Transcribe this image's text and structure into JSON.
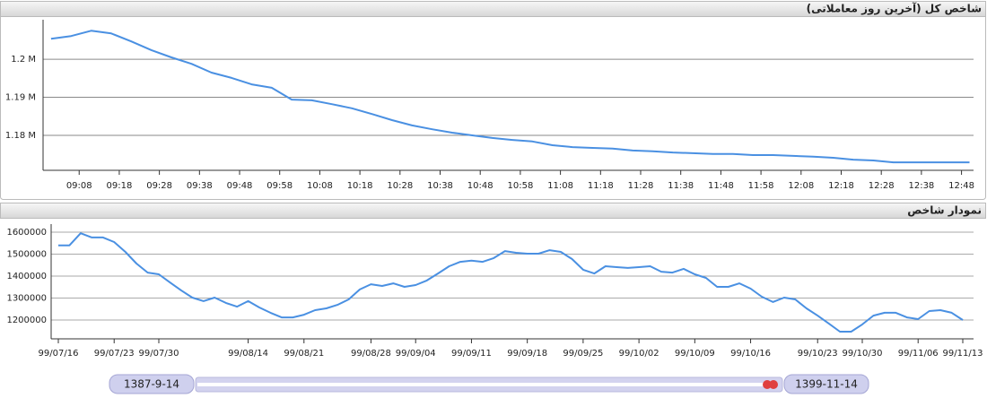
{
  "chart_data": [
    {
      "type": "line",
      "title": "شاخص کل (آخرین روز معاملاتی)",
      "x": [
        "09:01",
        "09:06",
        "09:11",
        "09:16",
        "09:21",
        "09:26",
        "09:31",
        "09:36",
        "09:41",
        "09:46",
        "09:51",
        "09:56",
        "10:01",
        "10:06",
        "10:11",
        "10:16",
        "10:21",
        "10:26",
        "10:31",
        "10:36",
        "10:41",
        "10:46",
        "10:51",
        "10:56",
        "11:01",
        "11:06",
        "11:11",
        "11:16",
        "11:21",
        "11:26",
        "11:31",
        "11:36",
        "11:41",
        "11:46",
        "11:51",
        "11:56",
        "12:01",
        "12:06",
        "12:11",
        "12:16",
        "12:21",
        "12:26",
        "12:31",
        "12:36",
        "12:41",
        "12:46",
        "12:50"
      ],
      "values": [
        1205400,
        1206100,
        1207500,
        1206800,
        1204700,
        1202400,
        1200500,
        1198800,
        1196500,
        1195100,
        1193400,
        1192500,
        1189400,
        1189200,
        1188200,
        1187100,
        1185600,
        1184000,
        1182600,
        1181600,
        1180700,
        1180000,
        1179300,
        1178800,
        1178400,
        1177400,
        1176900,
        1176700,
        1176500,
        1176000,
        1175800,
        1175500,
        1175300,
        1175100,
        1175100,
        1174800,
        1174800,
        1174600,
        1174400,
        1174100,
        1173600,
        1173400,
        1172900,
        1172900,
        1172900,
        1172900,
        1172900
      ],
      "color": "#4a90e2",
      "xlim": [
        "08:59",
        "12:51"
      ],
      "xticks": [
        "09:08",
        "09:18",
        "09:28",
        "09:38",
        "09:48",
        "09:58",
        "10:08",
        "10:18",
        "10:28",
        "10:38",
        "10:48",
        "10:58",
        "11:08",
        "11:18",
        "11:28",
        "11:38",
        "11:48",
        "11:58",
        "12:08",
        "12:18",
        "12:28",
        "12:38",
        "12:48"
      ],
      "ylim": [
        1170800,
        1210400
      ],
      "yticks": [
        {
          "value": 1180000,
          "label": "1.18 M"
        },
        {
          "value": 1190000,
          "label": "1.19 M"
        },
        {
          "value": 1200000,
          "label": "1.2 M"
        }
      ],
      "grid": true
    },
    {
      "type": "line",
      "title": "نمودار شاخص",
      "categories": [
        "99/07/16",
        null,
        null,
        null,
        null,
        "99/07/23",
        null,
        null,
        null,
        "99/07/30",
        null,
        null,
        null,
        null,
        null,
        null,
        null,
        "99/08/14",
        null,
        null,
        null,
        null,
        "99/08/21",
        null,
        null,
        null,
        null,
        null,
        "99/08/28",
        null,
        null,
        null,
        "99/09/04",
        null,
        null,
        null,
        null,
        "99/09/11",
        null,
        null,
        null,
        null,
        "99/09/18",
        null,
        null,
        null,
        null,
        "99/09/25",
        null,
        null,
        null,
        null,
        "99/10/02",
        null,
        null,
        null,
        null,
        "99/10/09",
        null,
        null,
        null,
        null,
        "99/10/16",
        null,
        null,
        null,
        null,
        null,
        "99/10/23",
        null,
        null,
        null,
        "99/10/30",
        null,
        null,
        null,
        null,
        "99/11/06",
        null,
        null,
        null,
        "99/11/13"
      ],
      "values": [
        1540000,
        1540000,
        1595000,
        1576000,
        1576000,
        1555000,
        1510000,
        1457000,
        1416000,
        1408000,
        1371000,
        1335000,
        1302000,
        1286000,
        1302000,
        1278000,
        1261000,
        1286000,
        1257000,
        1233000,
        1212000,
        1212000,
        1224000,
        1245000,
        1253000,
        1269000,
        1294000,
        1339000,
        1363000,
        1355000,
        1367000,
        1351000,
        1359000,
        1380000,
        1412000,
        1445000,
        1465000,
        1470000,
        1465000,
        1482000,
        1514000,
        1506000,
        1502000,
        1502000,
        1518000,
        1510000,
        1478000,
        1429000,
        1412000,
        1445000,
        1441000,
        1437000,
        1441000,
        1445000,
        1420000,
        1416000,
        1433000,
        1408000,
        1392000,
        1351000,
        1351000,
        1367000,
        1343000,
        1306000,
        1282000,
        1302000,
        1294000,
        1253000,
        1220000,
        1184000,
        1147000,
        1147000,
        1180000,
        1220000,
        1233000,
        1233000,
        1212000,
        1204000,
        1241000,
        1245000,
        1233000,
        1200000
      ],
      "color": "#4a90e2",
      "ylim": [
        1114300,
        1636700
      ],
      "yticks": [
        1200000,
        1300000,
        1400000,
        1500000,
        1600000
      ],
      "grid": true
    }
  ],
  "range_slider": {
    "start": "1387-9-14",
    "end": "1399-11-14"
  }
}
